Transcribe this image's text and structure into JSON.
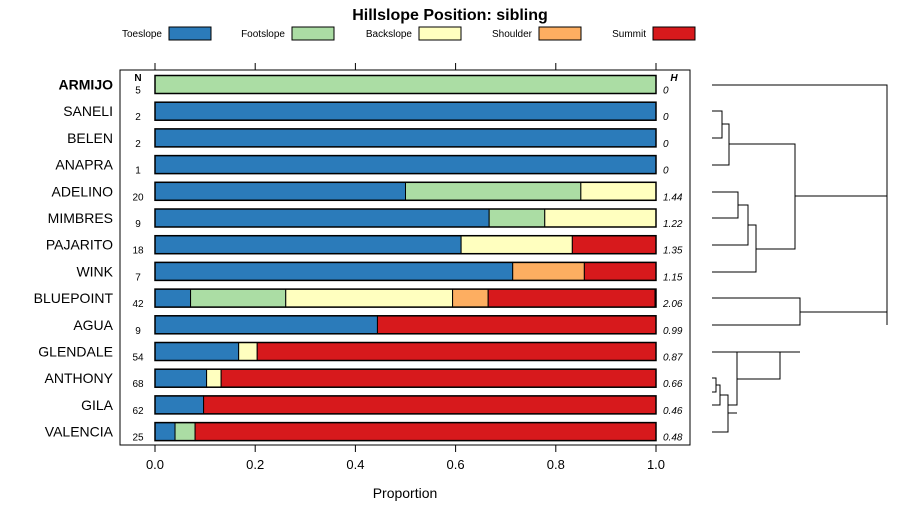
{
  "chart_data": {
    "type": "bar",
    "stacked": true,
    "horizontal": true,
    "title": "Hillslope Position: sibling",
    "xlabel": "Proportion",
    "xlim": [
      0,
      1
    ],
    "xticks": [
      0.0,
      0.2,
      0.4,
      0.6,
      0.8,
      1.0
    ],
    "xtick_labels": [
      "0.0",
      "0.2",
      "0.4",
      "0.6",
      "0.8",
      "1.0"
    ],
    "n_header": "N",
    "h_header": "H",
    "legend_position": "top",
    "series": [
      {
        "name": "Toeslope",
        "color": "#2b7bba"
      },
      {
        "name": "Footslope",
        "color": "#abdda4"
      },
      {
        "name": "Backslope",
        "color": "#ffffbf"
      },
      {
        "name": "Shoulder",
        "color": "#fdae61"
      },
      {
        "name": "Summit",
        "color": "#d7191c"
      }
    ],
    "rows": [
      {
        "label": "ARMIJO",
        "bold": true,
        "n": "5",
        "h": "0",
        "values": [
          0,
          1,
          0,
          0,
          0
        ]
      },
      {
        "label": "SANELI",
        "n": "2",
        "h": "0",
        "values": [
          1,
          0,
          0,
          0,
          0
        ]
      },
      {
        "label": "BELEN",
        "n": "2",
        "h": "0",
        "values": [
          1,
          0,
          0,
          0,
          0
        ]
      },
      {
        "label": "ANAPRA",
        "n": "1",
        "h": "0",
        "values": [
          1,
          0,
          0,
          0,
          0
        ]
      },
      {
        "label": "ADELINO",
        "n": "20",
        "h": "1.44",
        "values": [
          0.5,
          0.35,
          0.15,
          0,
          0
        ]
      },
      {
        "label": "MIMBRES",
        "n": "9",
        "h": "1.22",
        "values": [
          0.667,
          0.111,
          0.222,
          0,
          0
        ]
      },
      {
        "label": "PAJARITO",
        "n": "18",
        "h": "1.35",
        "values": [
          0.611,
          0,
          0.222,
          0,
          0.167
        ]
      },
      {
        "label": "WINK",
        "n": "7",
        "h": "1.15",
        "values": [
          0.714,
          0,
          0,
          0.143,
          0.143
        ]
      },
      {
        "label": "BLUEPOINT",
        "n": "42",
        "h": "2.06",
        "values": [
          0.071,
          0.19,
          0.333,
          0.071,
          0.333
        ]
      },
      {
        "label": "AGUA",
        "n": "9",
        "h": "0.99",
        "values": [
          0.444,
          0,
          0,
          0,
          0.556
        ]
      },
      {
        "label": "GLENDALE",
        "n": "54",
        "h": "0.87",
        "values": [
          0.167,
          0,
          0.037,
          0,
          0.796
        ]
      },
      {
        "label": "ANTHONY",
        "n": "68",
        "h": "0.66",
        "values": [
          0.103,
          0,
          0.029,
          0,
          0.868
        ]
      },
      {
        "label": "GILA",
        "n": "62",
        "h": "0.46",
        "values": [
          0.097,
          0,
          0,
          0,
          0.903
        ]
      },
      {
        "label": "VALENCIA",
        "n": "25",
        "h": "0.48",
        "values": [
          0.04,
          0.04,
          0,
          0,
          0.92
        ]
      }
    ]
  }
}
